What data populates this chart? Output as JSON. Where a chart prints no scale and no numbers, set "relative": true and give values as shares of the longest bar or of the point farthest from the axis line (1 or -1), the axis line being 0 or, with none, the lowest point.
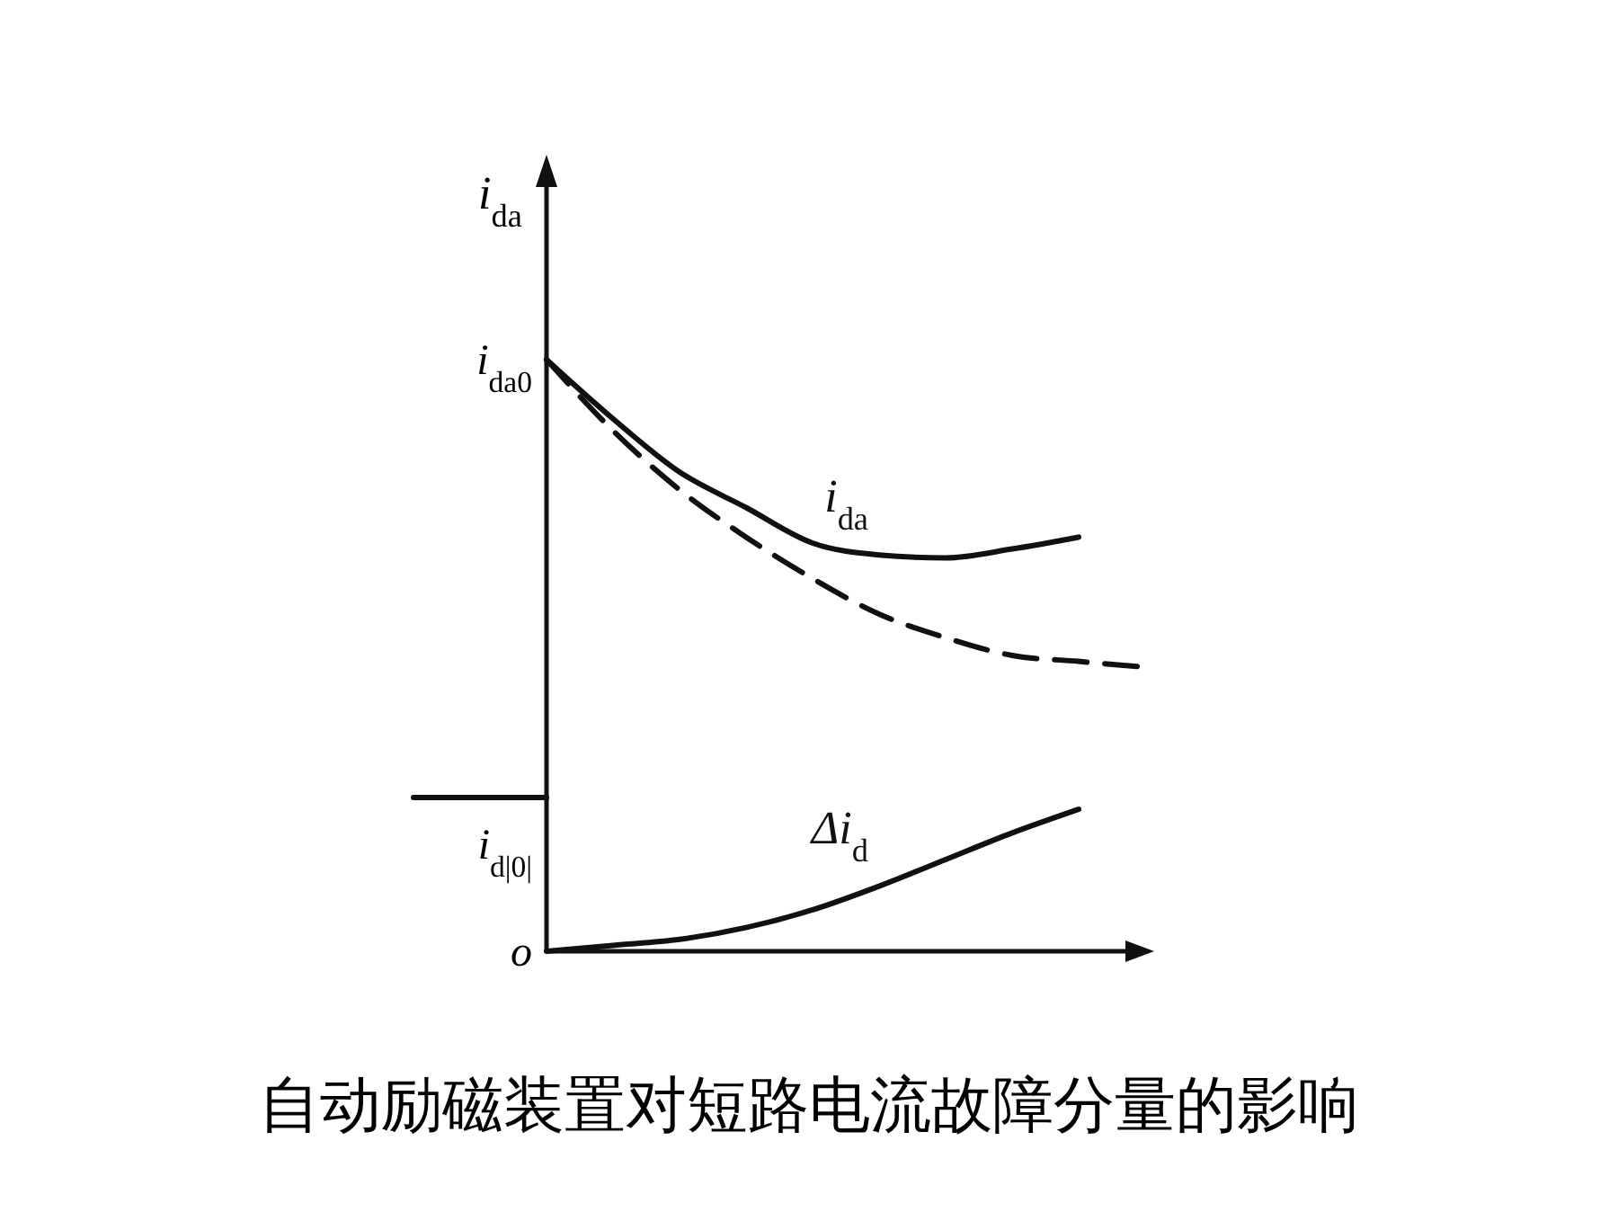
{
  "chart_data": {
    "type": "line",
    "title": "自动励磁装置对短路电流故障分量的影响",
    "ylabel": "i$_{da}$",
    "relative": true,
    "marker": "none",
    "categories": [
      null,
      null,
      null,
      null,
      null,
      null,
      null,
      null,
      null,
      null,
      null,
      null
    ],
    "series": [
      {
        "color": "#111111",
        "values": [
          0.26,
          0.26,
          0.26,
          null,
          null,
          null,
          null,
          null,
          null,
          null,
          null,
          null
        ]
      },
      {
        "name": "i$_{da}$",
        "color": "#111111",
        "values": [
          null,
          null,
          1.0,
          0.9,
          0.81,
          0.75,
          0.69,
          0.67,
          0.665,
          0.68,
          0.7,
          null
        ]
      },
      {
        "color": "#111111",
        "line_style": "dashed",
        "values": [
          null,
          null,
          1.0,
          0.88,
          0.78,
          0.7,
          0.63,
          0.57,
          0.53,
          0.5,
          0.49,
          0.48
        ]
      },
      {
        "name": "Δi$_{d}$",
        "color": "#111111",
        "values": [
          null,
          null,
          0,
          0.01,
          0.02,
          0.04,
          0.07,
          0.11,
          0.155,
          0.2,
          0.24,
          null
        ]
      }
    ],
    "annotations": [
      "i$_{da0}$",
      {
        "text": "i$_{d|0|}$",
        "y": 0.26
      },
      "o"
    ]
  }
}
